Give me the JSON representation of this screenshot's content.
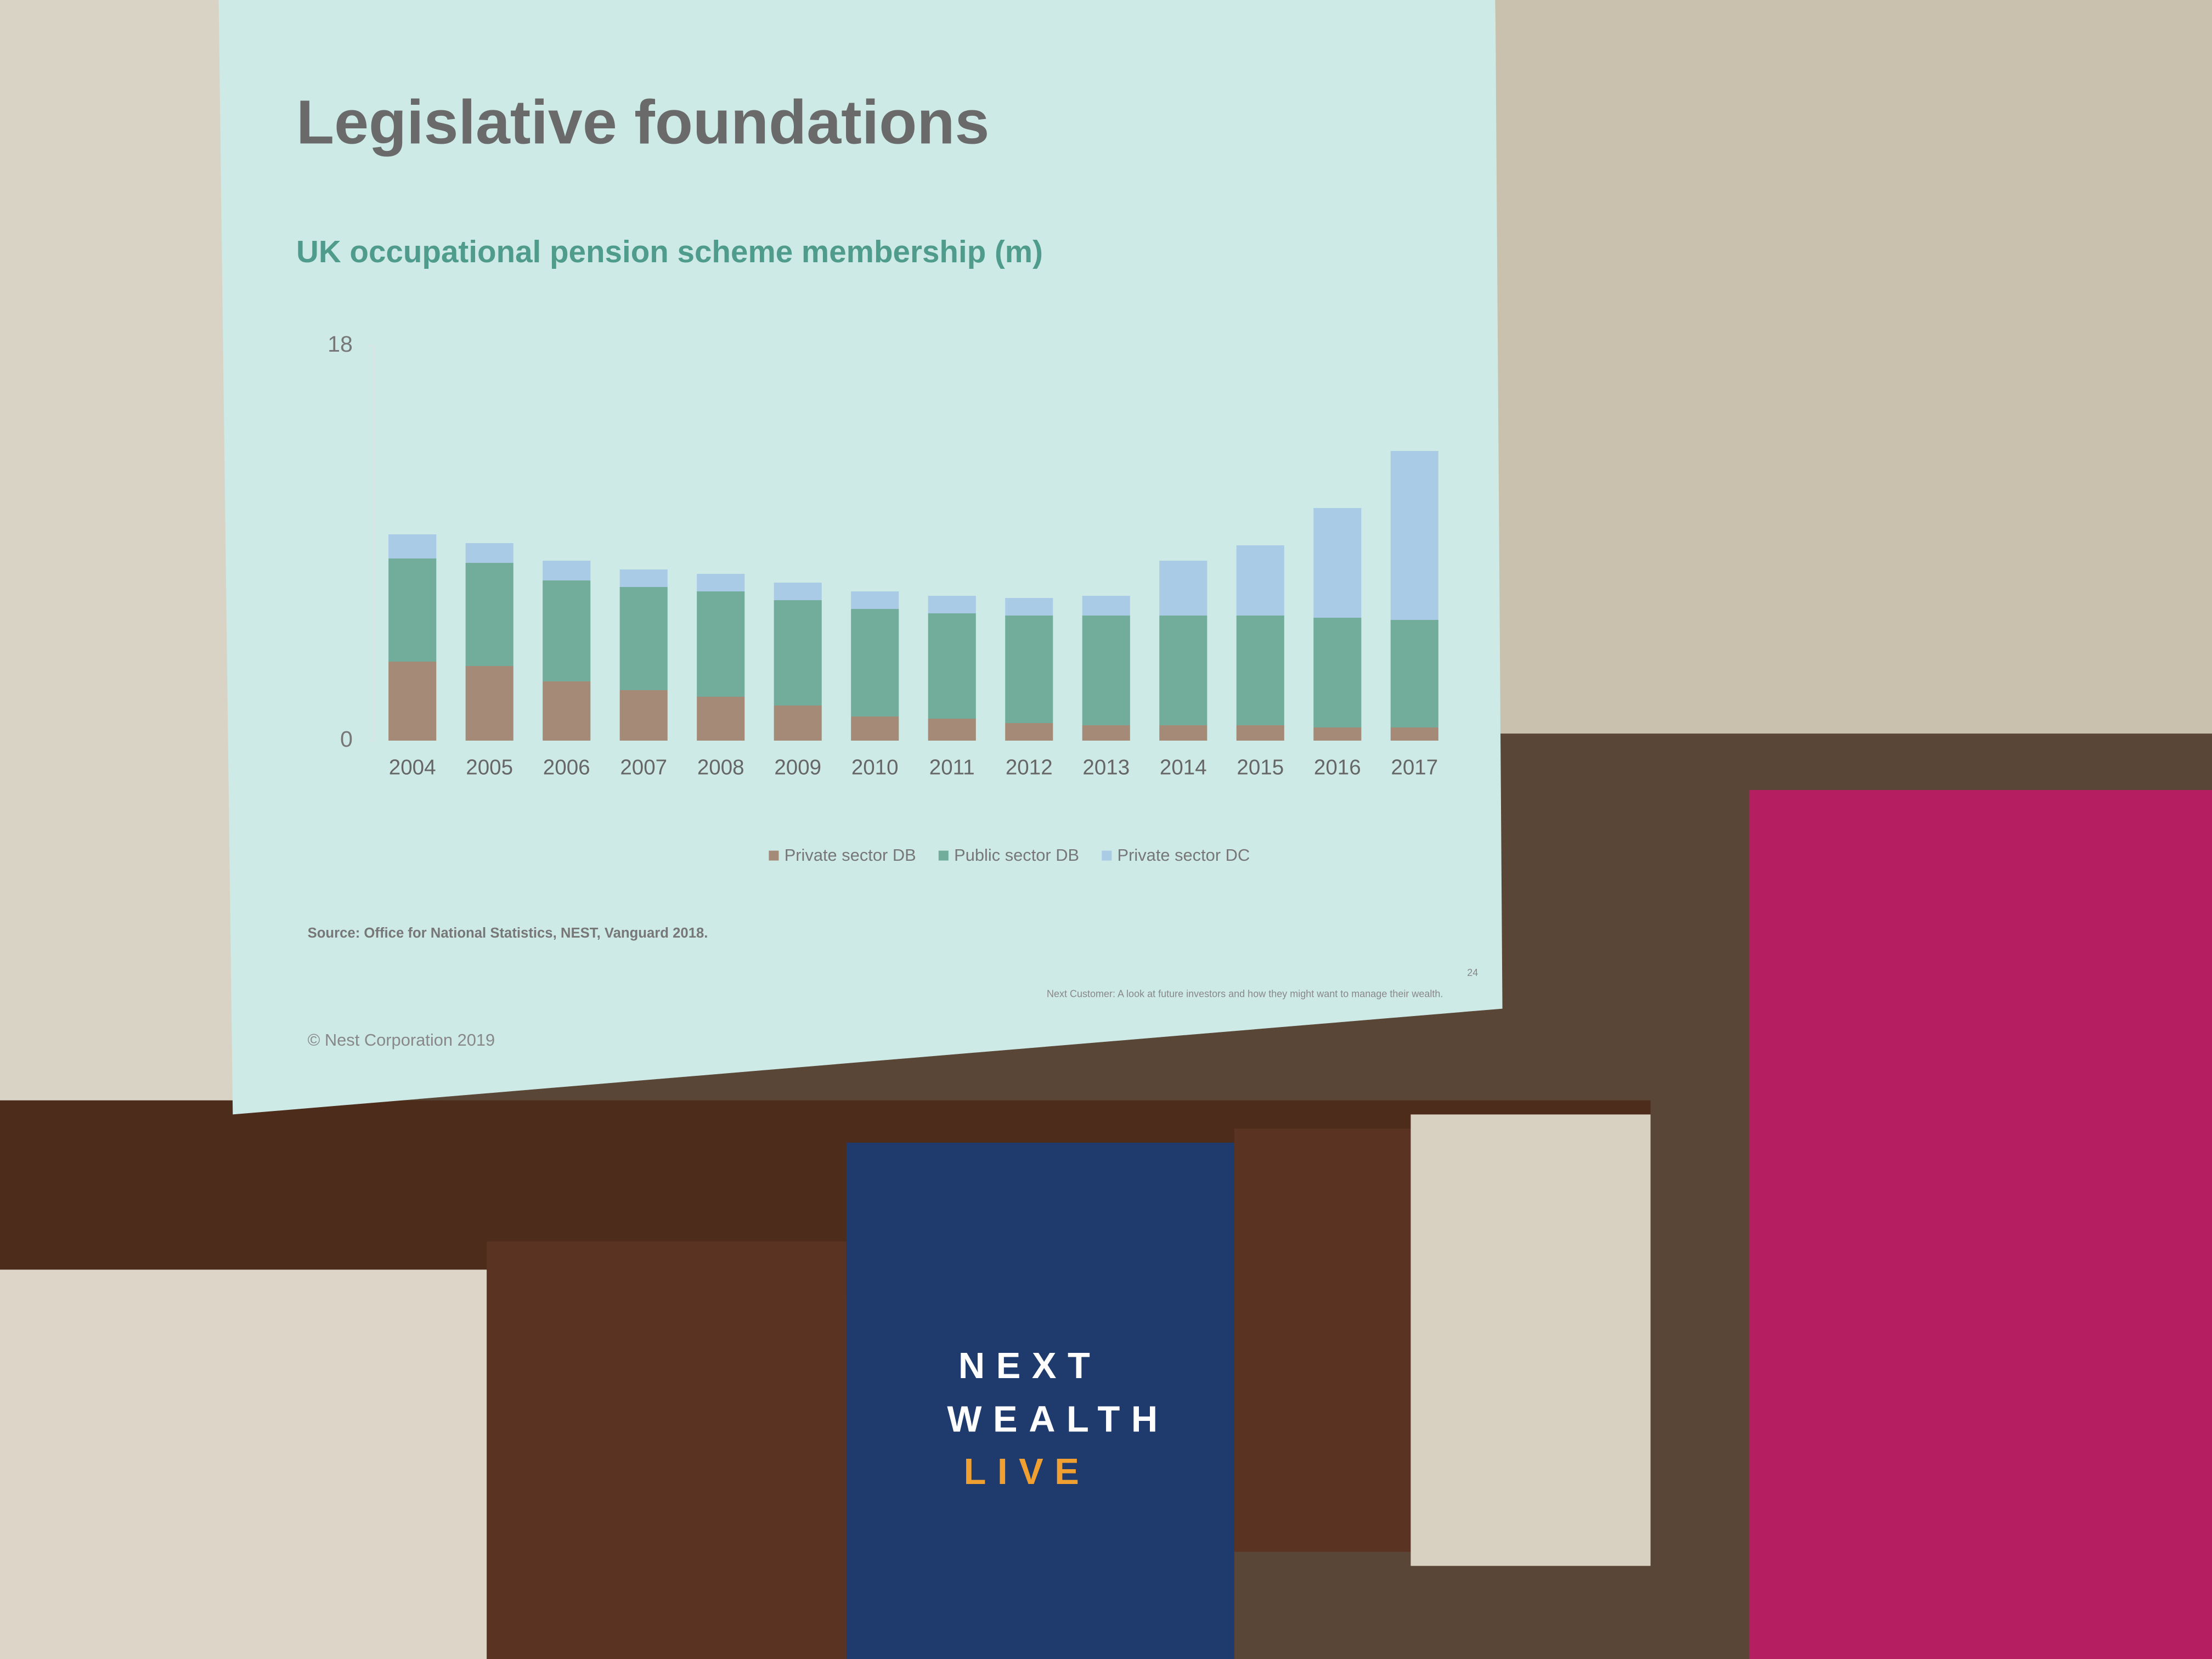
{
  "chart_data": {
    "type": "bar",
    "stacked": true,
    "title": "Legislative foundations",
    "subtitle": "UK occupational pension scheme membership (m)",
    "categories": [
      "2004",
      "2005",
      "2006",
      "2007",
      "2008",
      "2009",
      "2010",
      "2011",
      "2012",
      "2013",
      "2014",
      "2015",
      "2016",
      "2017"
    ],
    "series": [
      {
        "name": "Private sector DB",
        "color": "#a58a78",
        "values": [
          3.6,
          3.4,
          2.7,
          2.3,
          2.0,
          1.6,
          1.1,
          1.0,
          0.8,
          0.7,
          0.7,
          0.7,
          0.6,
          0.6
        ]
      },
      {
        "name": "Public sector DB",
        "color": "#72ad9c",
        "values": [
          4.7,
          4.7,
          4.6,
          4.7,
          4.8,
          4.8,
          4.9,
          4.8,
          4.9,
          5.0,
          5.0,
          5.0,
          5.0,
          4.9
        ]
      },
      {
        "name": "Private sector DC",
        "color": "#a9cbe6",
        "values": [
          1.1,
          0.9,
          0.9,
          0.8,
          0.8,
          0.8,
          0.8,
          0.8,
          0.8,
          0.9,
          2.5,
          3.2,
          5.0,
          7.7
        ]
      }
    ],
    "ylim": [
      0,
      18
    ],
    "yticks": [
      0,
      18
    ],
    "grid": false,
    "source": "Source: Office for National Statistics, NEST, Vanguard 2018.",
    "footer": "Next Customer: A look at future investors and how they might want to manage their wealth.",
    "page_number": "24",
    "copyright": "© Nest Corporation 2019"
  },
  "scene": {
    "banner": [
      "NEXT",
      "WEALTH",
      "LIVE"
    ]
  }
}
